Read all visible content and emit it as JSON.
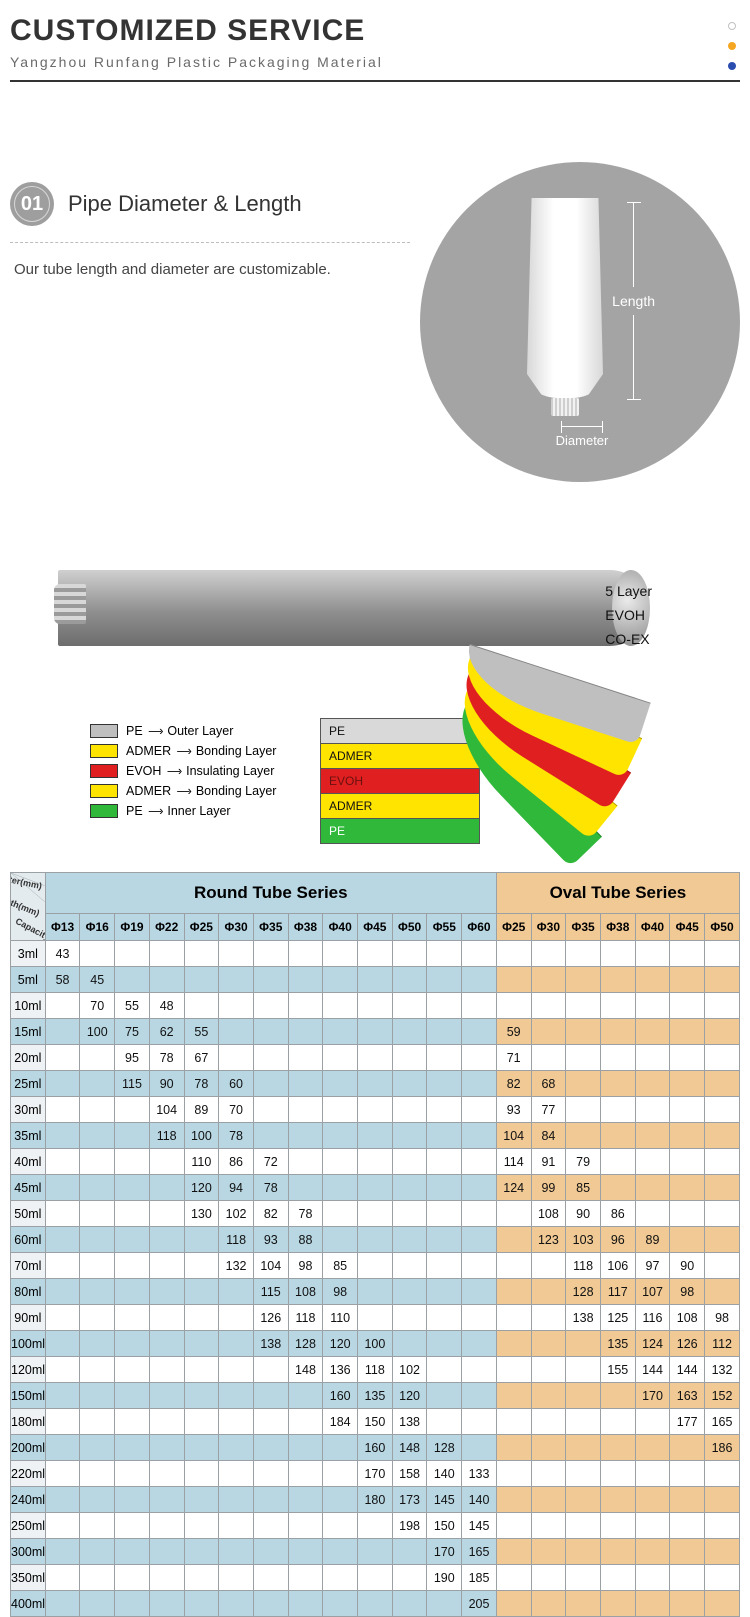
{
  "header": {
    "title": "CUSTOMIZED SERVICE",
    "subtitle": "Yangzhou Runfang Plastic Packaging Material",
    "dot_colors": [
      "#ffffff_stroke",
      "#f5a623",
      "#2b4db0"
    ]
  },
  "section1": {
    "badge": "01",
    "title": "Pipe Diameter & Length",
    "desc": "Our tube length and diameter are customizable.",
    "dim_length": "Length",
    "dim_diameter": "Diameter"
  },
  "layers": {
    "side_labels": [
      "5 Layer",
      "EVOH",
      "CO-EX"
    ],
    "peel_colors": [
      "#bfbfbf",
      "#ffe400",
      "#e02020",
      "#ffe400",
      "#2fb83a"
    ],
    "box_labels": [
      "PE",
      "ADMER",
      "EVOH",
      "ADMER",
      "PE"
    ],
    "box_bg": [
      "#d9d9d9",
      "#ffe400",
      "#e02020",
      "#ffe400",
      "#2fb83a"
    ],
    "box_tx": [
      "#111",
      "#111",
      "#6b1010",
      "#111",
      "#ffffff"
    ],
    "legend": [
      {
        "c": "#bfbfbf",
        "l": "PE",
        "r": "Outer Layer"
      },
      {
        "c": "#ffe400",
        "l": "ADMER",
        "r": "Bonding Layer"
      },
      {
        "c": "#e02020",
        "l": "EVOH",
        "r": "Insulating Layer"
      },
      {
        "c": "#ffe400",
        "l": "ADMER",
        "r": "Bonding Layer"
      },
      {
        "c": "#2fb83a",
        "l": "PE",
        "r": "Inner Layer"
      }
    ]
  },
  "table": {
    "corner_labels": [
      "Diameter(mm)",
      "Length(mm)",
      "Capacity(ml)"
    ],
    "group_round": "Round Tube Series",
    "group_oval": "Oval Tube Series",
    "round_cols": [
      "Φ13",
      "Φ16",
      "Φ19",
      "Φ22",
      "Φ25",
      "Φ30",
      "Φ35",
      "Φ38",
      "Φ40",
      "Φ45",
      "Φ50",
      "Φ55",
      "Φ60"
    ],
    "oval_cols": [
      "Φ25",
      "Φ30",
      "Φ35",
      "Φ38",
      "Φ40",
      "Φ45",
      "Φ50"
    ],
    "rows": [
      {
        "cap": "3ml",
        "hl": 1,
        "rd": [
          "43",
          "",
          "",
          "",
          "",
          "",
          "",
          "",
          "",
          "",
          "",
          "",
          ""
        ],
        "ov": [
          "",
          "",
          "",
          "",
          "",
          "",
          ""
        ]
      },
      {
        "cap": "5ml",
        "hl": 0,
        "rd": [
          "58",
          "45",
          "",
          "",
          "",
          "",
          "",
          "",
          "",
          "",
          "",
          "",
          ""
        ],
        "ov": [
          "",
          "",
          "",
          "",
          "",
          "",
          ""
        ]
      },
      {
        "cap": "10ml",
        "hl": 1,
        "rd": [
          "",
          "70",
          "55",
          "48",
          "",
          "",
          "",
          "",
          "",
          "",
          "",
          "",
          ""
        ],
        "ov": [
          "",
          "",
          "",
          "",
          "",
          "",
          ""
        ]
      },
      {
        "cap": "15ml",
        "hl": 0,
        "rd": [
          "",
          "100",
          "75",
          "62",
          "55",
          "",
          "",
          "",
          "",
          "",
          "",
          "",
          ""
        ],
        "ov": [
          "59",
          "",
          "",
          "",
          "",
          "",
          ""
        ]
      },
      {
        "cap": "20ml",
        "hl": 1,
        "rd": [
          "",
          "",
          "95",
          "78",
          "67",
          "",
          "",
          "",
          "",
          "",
          "",
          "",
          ""
        ],
        "ov": [
          "71",
          "",
          "",
          "",
          "",
          "",
          ""
        ]
      },
      {
        "cap": "25ml",
        "hl": 0,
        "rd": [
          "",
          "",
          "115",
          "90",
          "78",
          "60",
          "",
          "",
          "",
          "",
          "",
          "",
          ""
        ],
        "ov": [
          "82",
          "68",
          "",
          "",
          "",
          "",
          ""
        ]
      },
      {
        "cap": "30ml",
        "hl": 1,
        "rd": [
          "",
          "",
          "",
          "104",
          "89",
          "70",
          "",
          "",
          "",
          "",
          "",
          "",
          ""
        ],
        "ov": [
          "93",
          "77",
          "",
          "",
          "",
          "",
          ""
        ]
      },
      {
        "cap": "35ml",
        "hl": 0,
        "rd": [
          "",
          "",
          "",
          "118",
          "100",
          "78",
          "",
          "",
          "",
          "",
          "",
          "",
          ""
        ],
        "ov": [
          "104",
          "84",
          "",
          "",
          "",
          "",
          ""
        ]
      },
      {
        "cap": "40ml",
        "hl": 1,
        "rd": [
          "",
          "",
          "",
          "",
          "110",
          "86",
          "72",
          "",
          "",
          "",
          "",
          "",
          ""
        ],
        "ov": [
          "114",
          "91",
          "79",
          "",
          "",
          "",
          ""
        ]
      },
      {
        "cap": "45ml",
        "hl": 0,
        "rd": [
          "",
          "",
          "",
          "",
          "120",
          "94",
          "78",
          "",
          "",
          "",
          "",
          "",
          ""
        ],
        "ov": [
          "124",
          "99",
          "85",
          "",
          "",
          "",
          ""
        ]
      },
      {
        "cap": "50ml",
        "hl": 1,
        "rd": [
          "",
          "",
          "",
          "",
          "130",
          "102",
          "82",
          "78",
          "",
          "",
          "",
          "",
          ""
        ],
        "ov": [
          "",
          "108",
          "90",
          "86",
          "",
          "",
          ""
        ]
      },
      {
        "cap": "60ml",
        "hl": 0,
        "rd": [
          "",
          "",
          "",
          "",
          "",
          "118",
          "93",
          "88",
          "",
          "",
          "",
          "",
          ""
        ],
        "ov": [
          "",
          "123",
          "103",
          "96",
          "89",
          "",
          ""
        ]
      },
      {
        "cap": "70ml",
        "hl": 1,
        "rd": [
          "",
          "",
          "",
          "",
          "",
          "132",
          "104",
          "98",
          "85",
          "",
          "",
          "",
          ""
        ],
        "ov": [
          "",
          "",
          "118",
          "106",
          "97",
          "90",
          ""
        ]
      },
      {
        "cap": "80ml",
        "hl": 0,
        "rd": [
          "",
          "",
          "",
          "",
          "",
          "",
          "115",
          "108",
          "98",
          "",
          "",
          "",
          ""
        ],
        "ov": [
          "",
          "",
          "128",
          "117",
          "107",
          "98",
          ""
        ]
      },
      {
        "cap": "90ml",
        "hl": 1,
        "rd": [
          "",
          "",
          "",
          "",
          "",
          "",
          "126",
          "118",
          "110",
          "",
          "",
          "",
          ""
        ],
        "ov": [
          "",
          "",
          "138",
          "125",
          "116",
          "108",
          "98"
        ]
      },
      {
        "cap": "100ml",
        "hl": 0,
        "rd": [
          "",
          "",
          "",
          "",
          "",
          "",
          "138",
          "128",
          "120",
          "100",
          "",
          "",
          ""
        ],
        "ov": [
          "",
          "",
          "",
          "135",
          "124",
          "126",
          "112"
        ]
      },
      {
        "cap": "120ml",
        "hl": 1,
        "rd": [
          "",
          "",
          "",
          "",
          "",
          "",
          "",
          "148",
          "136",
          "118",
          "102",
          "",
          ""
        ],
        "ov": [
          "",
          "",
          "",
          "155",
          "144",
          "144",
          "132"
        ]
      },
      {
        "cap": "150ml",
        "hl": 0,
        "rd": [
          "",
          "",
          "",
          "",
          "",
          "",
          "",
          "",
          "160",
          "135",
          "120",
          "",
          ""
        ],
        "ov": [
          "",
          "",
          "",
          "",
          "170",
          "163",
          "152"
        ]
      },
      {
        "cap": "180ml",
        "hl": 1,
        "rd": [
          "",
          "",
          "",
          "",
          "",
          "",
          "",
          "",
          "184",
          "150",
          "138",
          "",
          ""
        ],
        "ov": [
          "",
          "",
          "",
          "",
          "",
          "177",
          "165"
        ]
      },
      {
        "cap": "200ml",
        "hl": 0,
        "rd": [
          "",
          "",
          "",
          "",
          "",
          "",
          "",
          "",
          "",
          "160",
          "148",
          "128",
          ""
        ],
        "ov": [
          "",
          "",
          "",
          "",
          "",
          "",
          "186"
        ]
      },
      {
        "cap": "220ml",
        "hl": 1,
        "rd": [
          "",
          "",
          "",
          "",
          "",
          "",
          "",
          "",
          "",
          "170",
          "158",
          "140",
          "133"
        ],
        "ov": [
          "",
          "",
          "",
          "",
          "",
          "",
          ""
        ]
      },
      {
        "cap": "240ml",
        "hl": 0,
        "rd": [
          "",
          "",
          "",
          "",
          "",
          "",
          "",
          "",
          "",
          "180",
          "173",
          "145",
          "140"
        ],
        "ov": [
          "",
          "",
          "",
          "",
          "",
          "",
          ""
        ]
      },
      {
        "cap": "250ml",
        "hl": 1,
        "rd": [
          "",
          "",
          "",
          "",
          "",
          "",
          "",
          "",
          "",
          "",
          "198",
          "150",
          "145"
        ],
        "ov": [
          "",
          "",
          "",
          "",
          "",
          "",
          ""
        ]
      },
      {
        "cap": "300ml",
        "hl": 0,
        "rd": [
          "",
          "",
          "",
          "",
          "",
          "",
          "",
          "",
          "",
          "",
          "",
          "170",
          "165"
        ],
        "ov": [
          "",
          "",
          "",
          "",
          "",
          "",
          ""
        ]
      },
      {
        "cap": "350ml",
        "hl": 1,
        "rd": [
          "",
          "",
          "",
          "",
          "",
          "",
          "",
          "",
          "",
          "",
          "",
          "190",
          "185"
        ],
        "ov": [
          "",
          "",
          "",
          "",
          "",
          "",
          ""
        ]
      },
      {
        "cap": "400ml",
        "hl": 0,
        "rd": [
          "",
          "",
          "",
          "",
          "",
          "",
          "",
          "",
          "",
          "",
          "",
          "",
          "205"
        ],
        "ov": [
          "",
          "",
          "",
          "",
          "",
          "",
          ""
        ]
      }
    ]
  }
}
